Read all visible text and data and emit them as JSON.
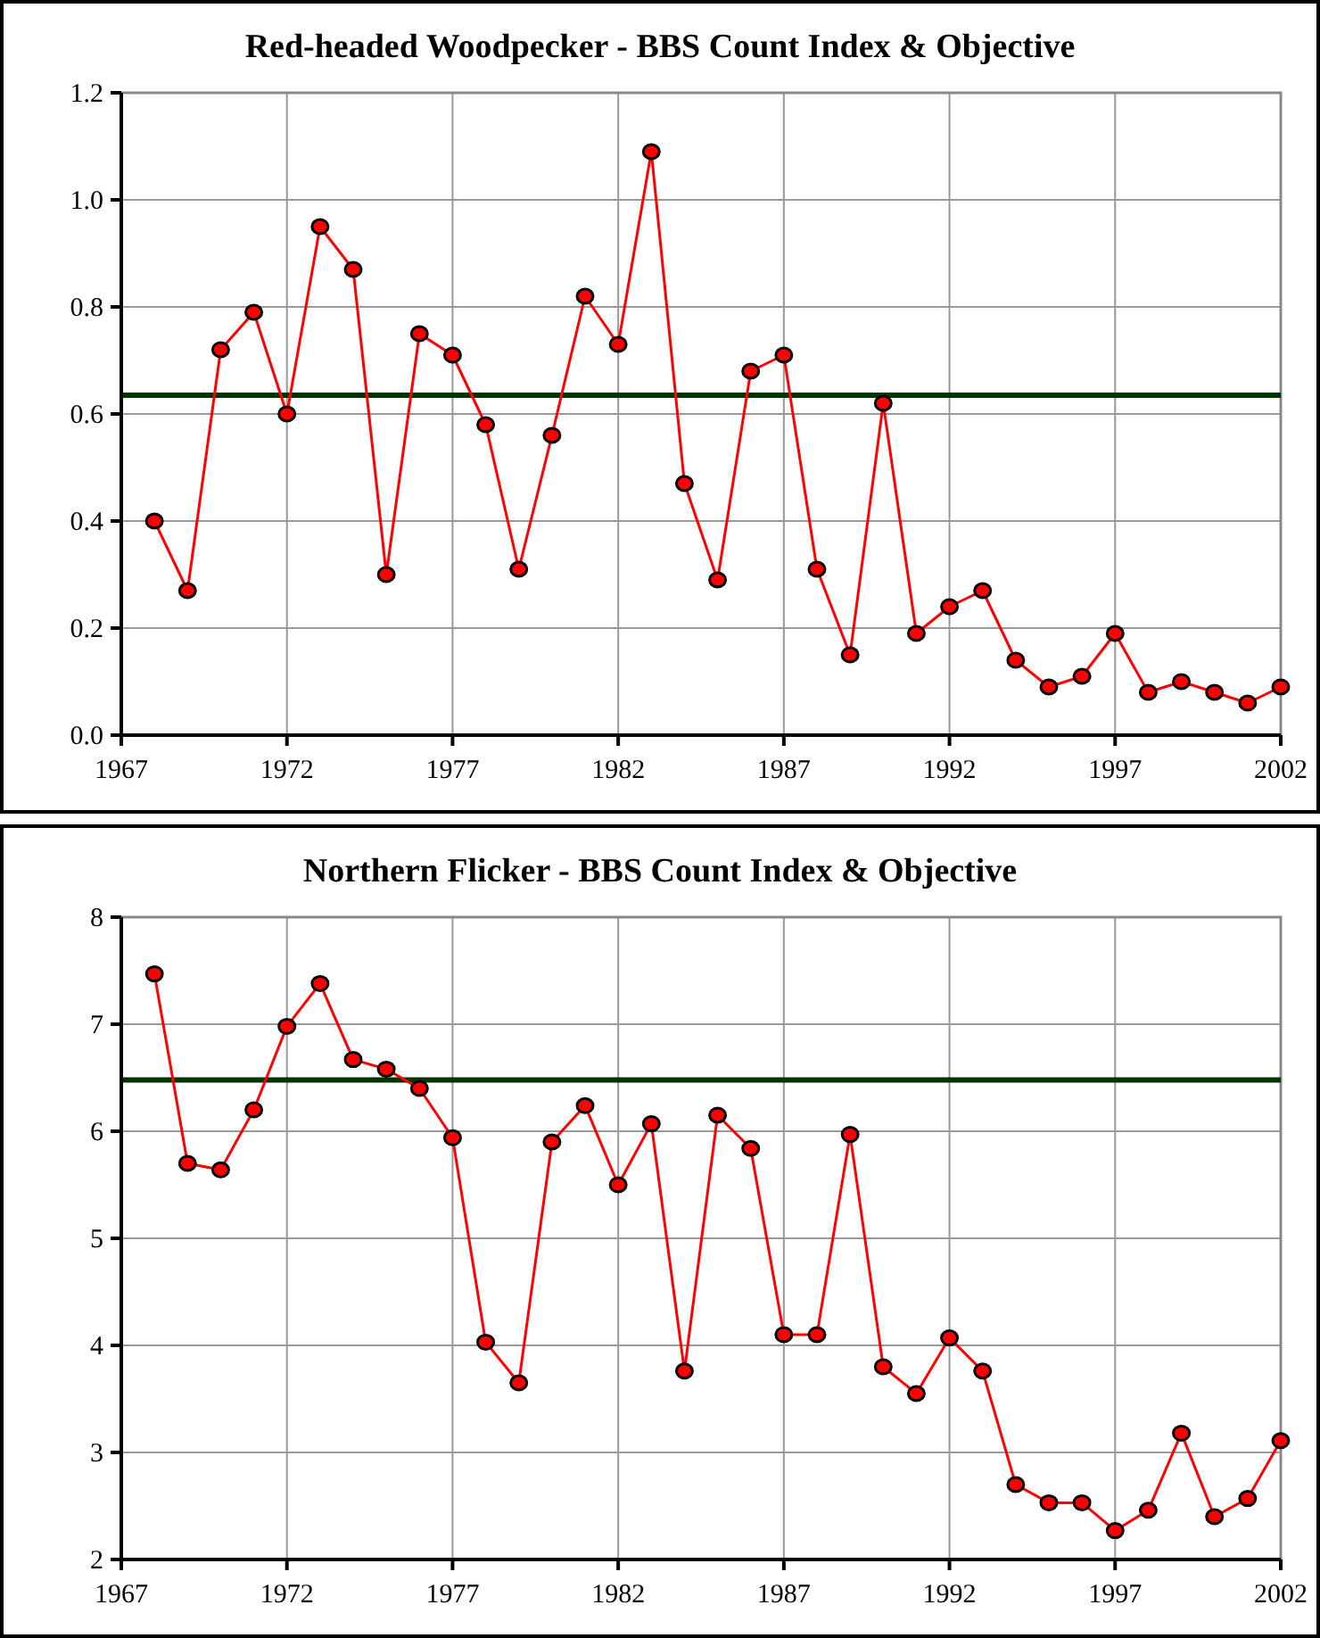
{
  "chart_data": [
    {
      "type": "line",
      "title": "Red-headed Woodpecker - BBS Count Index & Objective",
      "x": [
        1968,
        1969,
        1970,
        1971,
        1972,
        1973,
        1974,
        1975,
        1976,
        1977,
        1978,
        1979,
        1980,
        1981,
        1982,
        1983,
        1984,
        1985,
        1986,
        1987,
        1988,
        1989,
        1990,
        1991,
        1992,
        1993,
        1994,
        1995,
        1996,
        1997,
        1998,
        1999,
        2000,
        2001,
        2002
      ],
      "series": [
        {
          "color": "#ff0000",
          "values": [
            0.4,
            0.27,
            0.72,
            0.79,
            0.6,
            0.95,
            0.87,
            0.3,
            0.75,
            0.71,
            0.58,
            0.31,
            0.56,
            0.82,
            0.73,
            1.09,
            0.47,
            0.29,
            0.68,
            0.71,
            0.31,
            0.15,
            0.62,
            0.19,
            0.24,
            0.27,
            0.14,
            0.09,
            0.11,
            0.19,
            0.08,
            0.1,
            0.08,
            0.06,
            0.09
          ]
        }
      ],
      "ref_lines": [
        {
          "axis": "y",
          "value": 0.635,
          "color": "#003300"
        }
      ],
      "xlim": [
        1967,
        2002
      ],
      "xticks": [
        1967,
        1972,
        1977,
        1982,
        1987,
        1992,
        1997,
        2002
      ],
      "ylim": [
        0,
        1.2
      ],
      "yticks": [
        {
          "value": 0,
          "label": "0.0"
        },
        0.2,
        0.4,
        0.6,
        0.8,
        {
          "value": 1,
          "label": "1.0"
        },
        1.2
      ],
      "grid": true,
      "marker": "circle",
      "line_style": "solid"
    },
    {
      "type": "line",
      "title": "Northern Flicker - BBS Count Index & Objective",
      "x": [
        1968,
        1969,
        1970,
        1971,
        1972,
        1973,
        1974,
        1975,
        1976,
        1977,
        1978,
        1979,
        1980,
        1981,
        1982,
        1983,
        1984,
        1985,
        1986,
        1987,
        1988,
        1989,
        1990,
        1991,
        1992,
        1993,
        1994,
        1995,
        1996,
        1997,
        1998,
        1999,
        2000,
        2001,
        2002
      ],
      "series": [
        {
          "color": "#ff0000",
          "values": [
            7.47,
            5.7,
            5.64,
            6.2,
            6.98,
            7.38,
            6.67,
            6.58,
            6.4,
            5.94,
            4.03,
            3.65,
            5.9,
            6.24,
            5.5,
            6.07,
            3.76,
            6.15,
            5.84,
            4.1,
            4.1,
            5.97,
            3.8,
            3.55,
            4.07,
            3.76,
            2.7,
            2.53,
            2.53,
            2.27,
            2.46,
            3.18,
            2.4,
            2.57,
            3.11
          ]
        }
      ],
      "ref_lines": [
        {
          "axis": "y",
          "value": 6.48,
          "color": "#003300"
        }
      ],
      "xlim": [
        1967,
        2002
      ],
      "xticks": [
        1967,
        1972,
        1977,
        1982,
        1987,
        1992,
        1997,
        2002
      ],
      "ylim": [
        2,
        8
      ],
      "yticks": [
        2,
        3,
        4,
        5,
        6,
        7,
        8
      ],
      "grid": true,
      "marker": "circle",
      "line_style": "solid"
    }
  ]
}
